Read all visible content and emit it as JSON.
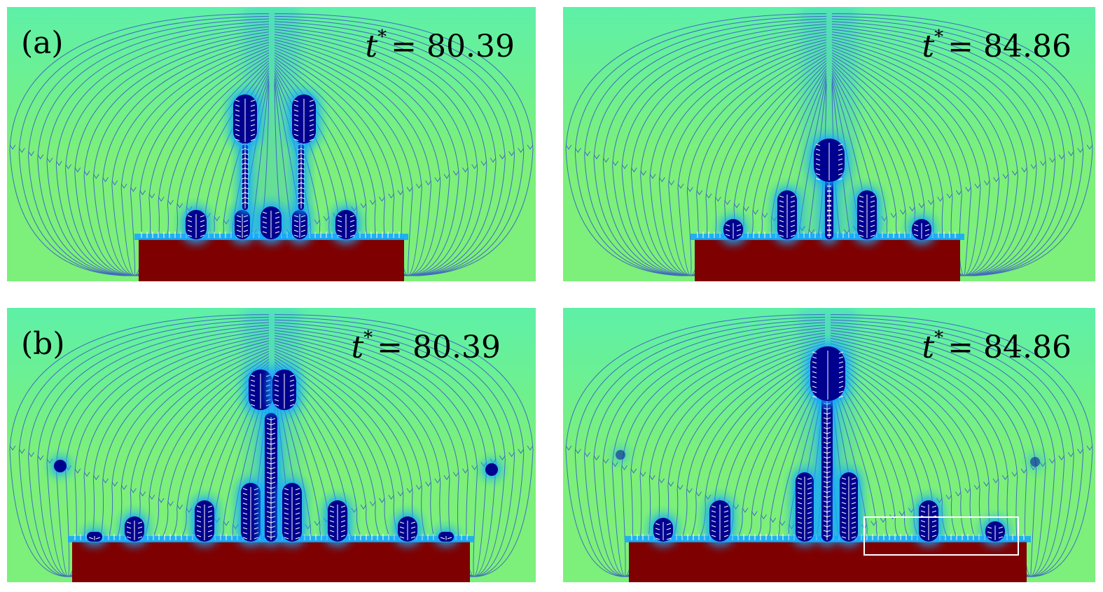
{
  "panels": [
    {
      "id": "a-left",
      "label": "(a)",
      "time": "80.39",
      "t_symbol": "t",
      "t_superscript": "*",
      "equals": "="
    },
    {
      "id": "a-right",
      "label": "",
      "time": "84.86",
      "t_symbol": "t",
      "t_superscript": "*",
      "equals": "="
    },
    {
      "id": "b-left",
      "label": "(b)",
      "time": "80.39",
      "t_symbol": "t",
      "t_superscript": "*",
      "equals": "="
    },
    {
      "id": "b-right",
      "label": "",
      "time": "84.86",
      "t_symbol": "t",
      "t_superscript": "*",
      "equals": "="
    }
  ],
  "colors": {
    "background_field": "#7cf07a",
    "background_field_upper": "#5ef0a8",
    "bubble_core": "#00008f",
    "bubble_halo": "#16a8ff",
    "heater": "#7f0000",
    "streamline": "#3a55c8",
    "interface_arrow": "#ffffff",
    "highlight_box": "#ffffff"
  }
}
